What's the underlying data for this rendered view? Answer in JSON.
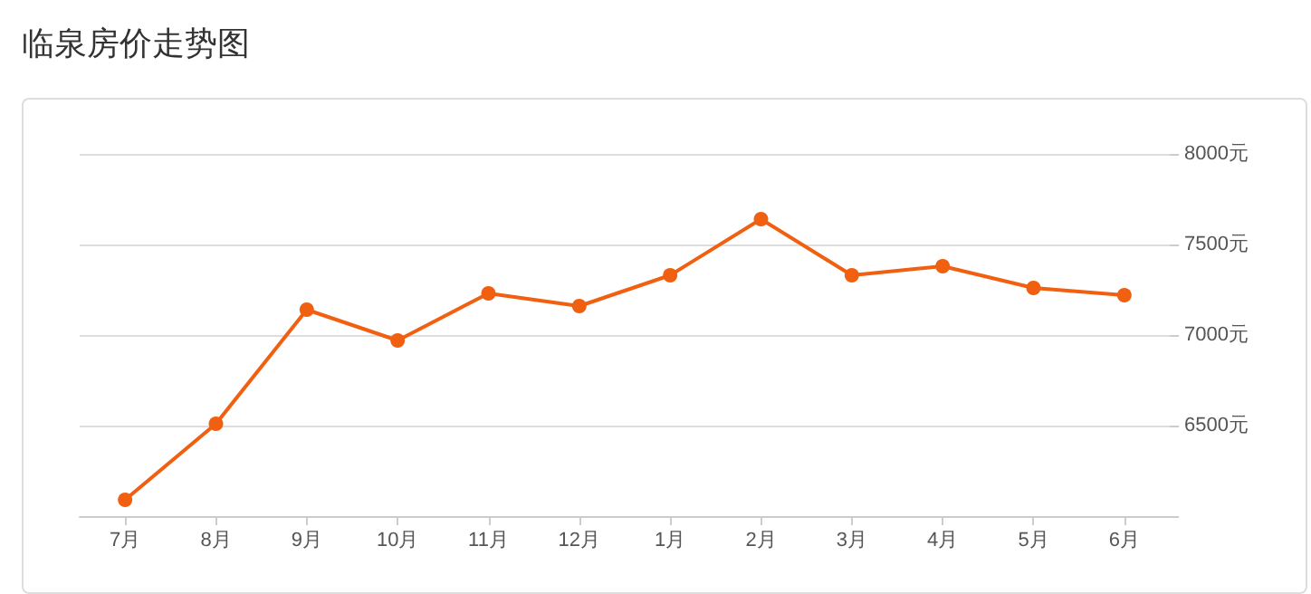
{
  "chart_data": {
    "type": "line",
    "title": "临泉房价走势图",
    "categories": [
      "7月",
      "8月",
      "9月",
      "10月",
      "11月",
      "12月",
      "1月",
      "2月",
      "3月",
      "4月",
      "5月",
      "6月"
    ],
    "series": [
      {
        "color": "#f06010",
        "values": [
          6090,
          6510,
          7140,
          6970,
          7230,
          7160,
          7330,
          7640,
          7330,
          7380,
          7260,
          7220
        ]
      }
    ],
    "ylim": [
      6000,
      8000
    ],
    "yticks": [
      {
        "value": 6000,
        "label": null
      },
      {
        "value": 6500,
        "label": "6500元"
      },
      {
        "value": 7000,
        "label": "7000元"
      },
      {
        "value": 7500,
        "label": "7500元"
      },
      {
        "value": 8000,
        "label": "8000元"
      }
    ],
    "grid": "y",
    "marker": "circle",
    "line_style": "solid"
  }
}
